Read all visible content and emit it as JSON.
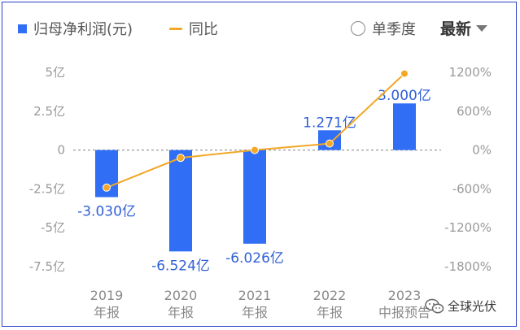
{
  "legend": {
    "bar_label": "归母净利润(元)",
    "line_label": "同比",
    "radio_label": "单季度",
    "dropdown_label": "最新"
  },
  "watermark": "全球光伏",
  "colors": {
    "bar": "#2f6ef5",
    "line": "#f2a727",
    "bar_label": "#2f5fd6",
    "grid": "#9a9a9a",
    "tick": "#999999"
  },
  "chart_data": {
    "type": "bar",
    "categories": [
      [
        "2019",
        "年报"
      ],
      [
        "2020",
        "年报"
      ],
      [
        "2021",
        "年报"
      ],
      [
        "2022",
        "年报"
      ],
      [
        "2023",
        "中报预告"
      ]
    ],
    "series": [
      {
        "name": "归母净利润(元)",
        "type": "bar",
        "axis": "left",
        "values": [
          -3.03,
          -6.524,
          -6.026,
          1.271,
          3.0
        ],
        "labels": [
          "-3.030亿",
          "-6.524亿",
          "-6.026亿",
          "1.271亿",
          "3.000亿"
        ]
      },
      {
        "name": "同比",
        "type": "line",
        "axis": "right",
        "values": [
          -580,
          -120,
          0,
          100,
          1180
        ]
      }
    ],
    "y_left": {
      "ticks": [
        5,
        2.5,
        0,
        -2.5,
        -5,
        -7.5
      ],
      "labels": [
        "5亿",
        "2.5亿",
        "0",
        "-2.5亿",
        "-5亿",
        "-7.5亿"
      ],
      "ylim": [
        -7.5,
        5
      ]
    },
    "y_right": {
      "ticks": [
        1200,
        600,
        0,
        -600,
        -1200,
        -1800
      ],
      "labels": [
        "1200%",
        "600%",
        "0%",
        "-600%",
        "-1200%",
        "-1800%"
      ],
      "ylim": [
        -1800,
        1200
      ]
    },
    "grid": "dashed zero line"
  }
}
